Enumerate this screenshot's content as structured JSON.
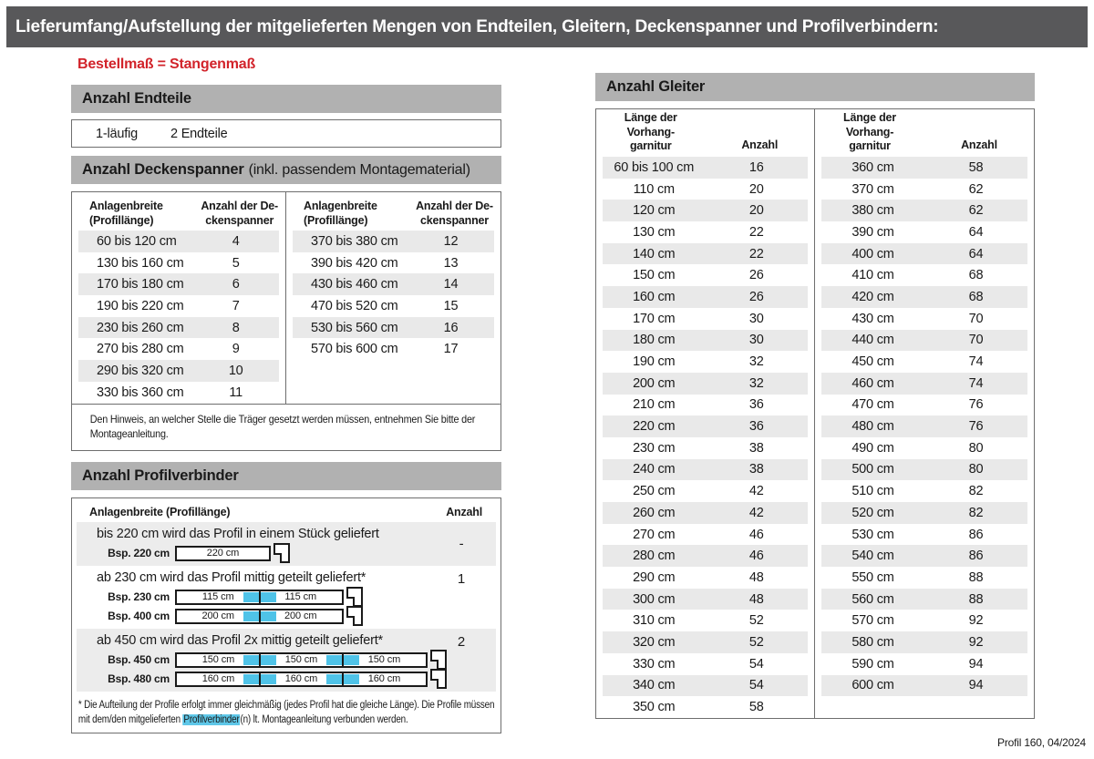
{
  "header": {
    "title": "Lieferumfang/Aufstellung der mitgelieferten Mengen von Endteilen, Gleitern, Deckenspanner und Profilverbindern:"
  },
  "order_note": "Bestellmaß = Stangenmaß",
  "endteile": {
    "heading": "Anzahl Endteile",
    "row": {
      "label": "1-läufig",
      "value": "2 Endteile"
    }
  },
  "deckenspanner": {
    "heading_bold": "Anzahl Deckenspanner",
    "heading_normal": "(inkl. passendem Montagematerial)",
    "col_width": "Anlagenbreite\n(Profillänge)",
    "col_count": "Anzahl der De-\nckenspanner",
    "left_rows": [
      [
        "60 bis 120 cm",
        "4"
      ],
      [
        "130 bis 160 cm",
        "5"
      ],
      [
        "170 bis 180 cm",
        "6"
      ],
      [
        "190 bis 220 cm",
        "7"
      ],
      [
        "230 bis 260 cm",
        "8"
      ],
      [
        "270 bis 280 cm",
        "9"
      ],
      [
        "290 bis 320 cm",
        "10"
      ],
      [
        "330 bis 360 cm",
        "11"
      ]
    ],
    "right_rows": [
      [
        "370 bis 380 cm",
        "12"
      ],
      [
        "390 bis 420 cm",
        "13"
      ],
      [
        "430 bis 460 cm",
        "14"
      ],
      [
        "470 bis 520 cm",
        "15"
      ],
      [
        "530 bis 560 cm",
        "16"
      ],
      [
        "570 bis 600 cm",
        "17"
      ]
    ],
    "note": "Den Hinweis, an welcher Stelle die Träger gesetzt werden müssen, entnehmen Sie bitte der Montageanleitung."
  },
  "profilverbinder": {
    "heading": "Anzahl Profilverbinder",
    "col_width": "Anlagenbreite (Profillänge)",
    "col_count": "Anzahl",
    "rows": [
      {
        "text": "bis 220 cm wird das Profil in einem Stück geliefert",
        "count": "-",
        "examples": [
          {
            "label": "Bsp. 220 cm",
            "segments": [
              "220 cm"
            ]
          }
        ]
      },
      {
        "text": "ab 230 cm wird das Profil mittig geteilt geliefert*",
        "count": "1",
        "examples": [
          {
            "label": "Bsp. 230 cm",
            "segments": [
              "115 cm",
              "115 cm"
            ]
          },
          {
            "label": "Bsp. 400 cm",
            "segments": [
              "200 cm",
              "200 cm"
            ]
          }
        ]
      },
      {
        "text": "ab 450 cm wird das Profil 2x mittig geteilt geliefert*",
        "count": "2",
        "examples": [
          {
            "label": "Bsp. 450 cm",
            "segments": [
              "150 cm",
              "150 cm",
              "150 cm"
            ]
          },
          {
            "label": "Bsp. 480 cm",
            "segments": [
              "160 cm",
              "160 cm",
              "160 cm"
            ]
          }
        ]
      }
    ],
    "footnote": {
      "pre": "* Die Aufteilung der Profile erfolgt immer gleichmäßig (jedes Profil hat die gleiche Länge). Die Profile müssen mit dem/den mitgelieferten ",
      "highlight": "Profilverbinder",
      "post": "(n) lt. Montageanleitung verbunden werden."
    }
  },
  "gleiter": {
    "heading": "Anzahl Gleiter",
    "col_length": "Länge der\nVorhang-\ngarnitur",
    "col_count": "Anzahl",
    "left_rows": [
      [
        "60 bis 100 cm",
        "16"
      ],
      [
        "110 cm",
        "20"
      ],
      [
        "120 cm",
        "20"
      ],
      [
        "130 cm",
        "22"
      ],
      [
        "140 cm",
        "22"
      ],
      [
        "150 cm",
        "26"
      ],
      [
        "160 cm",
        "26"
      ],
      [
        "170 cm",
        "30"
      ],
      [
        "180 cm",
        "30"
      ],
      [
        "190 cm",
        "32"
      ],
      [
        "200 cm",
        "32"
      ],
      [
        "210 cm",
        "36"
      ],
      [
        "220 cm",
        "36"
      ],
      [
        "230 cm",
        "38"
      ],
      [
        "240 cm",
        "38"
      ],
      [
        "250 cm",
        "42"
      ],
      [
        "260 cm",
        "42"
      ],
      [
        "270 cm",
        "46"
      ],
      [
        "280 cm",
        "46"
      ],
      [
        "290 cm",
        "48"
      ],
      [
        "300 cm",
        "48"
      ],
      [
        "310 cm",
        "52"
      ],
      [
        "320 cm",
        "52"
      ],
      [
        "330 cm",
        "54"
      ],
      [
        "340 cm",
        "54"
      ],
      [
        "350 cm",
        "58"
      ]
    ],
    "right_rows": [
      [
        "360 cm",
        "58"
      ],
      [
        "370 cm",
        "62"
      ],
      [
        "380 cm",
        "62"
      ],
      [
        "390 cm",
        "64"
      ],
      [
        "400 cm",
        "64"
      ],
      [
        "410 cm",
        "68"
      ],
      [
        "420 cm",
        "68"
      ],
      [
        "430 cm",
        "70"
      ],
      [
        "440 cm",
        "70"
      ],
      [
        "450 cm",
        "74"
      ],
      [
        "460 cm",
        "74"
      ],
      [
        "470 cm",
        "76"
      ],
      [
        "480 cm",
        "76"
      ],
      [
        "490 cm",
        "80"
      ],
      [
        "500 cm",
        "80"
      ],
      [
        "510 cm",
        "82"
      ],
      [
        "520 cm",
        "82"
      ],
      [
        "530 cm",
        "86"
      ],
      [
        "540 cm",
        "86"
      ],
      [
        "550 cm",
        "88"
      ],
      [
        "560 cm",
        "88"
      ],
      [
        "570 cm",
        "92"
      ],
      [
        "580 cm",
        "92"
      ],
      [
        "590 cm",
        "94"
      ],
      [
        "600 cm",
        "94"
      ]
    ]
  },
  "footer": "Profil 160, 04/2024",
  "colors": {
    "title_bar": "#58585a",
    "section_bar": "#b1b1b1",
    "row_shade": "#e9e9e9",
    "accent_red": "#d2232a",
    "connector_blue": "#4fc3e8"
  }
}
